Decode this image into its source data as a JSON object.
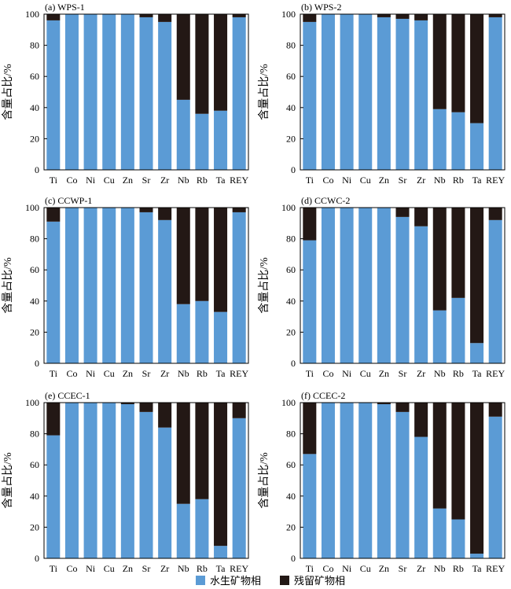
{
  "legend": [
    {
      "label": "水生矿物相",
      "color": "#5b9bd5"
    },
    {
      "label": "残留矿物相",
      "color": "#231815"
    }
  ],
  "chart_data": [
    {
      "type": "bar",
      "stacked": true,
      "title": "(a) WPS-1",
      "ylabel": "含量占比/%",
      "ylim": [
        0,
        100
      ],
      "yticks": [
        0,
        20,
        40,
        60,
        80,
        100
      ],
      "categories": [
        "Ti",
        "Co",
        "Ni",
        "Cu",
        "Zn",
        "Sr",
        "Zr",
        "Nb",
        "Rb",
        "Ta",
        "REY"
      ],
      "series": [
        {
          "name": "水生矿物相",
          "color": "#5b9bd5",
          "values": [
            96,
            100,
            100,
            100,
            100,
            98,
            95,
            45,
            36,
            38,
            98
          ]
        },
        {
          "name": "残留矿物相",
          "color": "#231815",
          "values": [
            4,
            0,
            0,
            0,
            0,
            2,
            5,
            55,
            64,
            62,
            2
          ]
        }
      ]
    },
    {
      "type": "bar",
      "stacked": true,
      "title": "(b) WPS-2",
      "ylabel": "含量占比/%",
      "ylim": [
        0,
        100
      ],
      "yticks": [
        0,
        20,
        40,
        60,
        80,
        100
      ],
      "categories": [
        "Ti",
        "Co",
        "Ni",
        "Cu",
        "Zn",
        "Sr",
        "Zr",
        "Nb",
        "Rb",
        "Ta",
        "REY"
      ],
      "series": [
        {
          "name": "水生矿物相",
          "color": "#5b9bd5",
          "values": [
            95,
            100,
            100,
            100,
            98,
            97,
            96,
            39,
            37,
            30,
            98
          ]
        },
        {
          "name": "残留矿物相",
          "color": "#231815",
          "values": [
            5,
            0,
            0,
            0,
            2,
            3,
            4,
            61,
            63,
            70,
            2
          ]
        }
      ]
    },
    {
      "type": "bar",
      "stacked": true,
      "title": "(c) CCWP-1",
      "ylabel": "含量占比/%",
      "ylim": [
        0,
        100
      ],
      "yticks": [
        0,
        20,
        40,
        60,
        80,
        100
      ],
      "categories": [
        "Ti",
        "Co",
        "Ni",
        "Cu",
        "Zn",
        "Sr",
        "Zr",
        "Nb",
        "Rb",
        "Ta",
        "REY"
      ],
      "series": [
        {
          "name": "水生矿物相",
          "color": "#5b9bd5",
          "values": [
            91,
            100,
            100,
            100,
            100,
            97,
            92,
            38,
            40,
            33,
            97
          ]
        },
        {
          "name": "残留矿物相",
          "color": "#231815",
          "values": [
            9,
            0,
            0,
            0,
            0,
            3,
            8,
            62,
            60,
            67,
            3
          ]
        }
      ]
    },
    {
      "type": "bar",
      "stacked": true,
      "title": "(d) CCWC-2",
      "ylabel": "含量占比/%",
      "ylim": [
        0,
        100
      ],
      "yticks": [
        0,
        20,
        40,
        60,
        80,
        100
      ],
      "categories": [
        "Ti",
        "Co",
        "Ni",
        "Cu",
        "Zn",
        "Sr",
        "Zr",
        "Nb",
        "Rb",
        "Ta",
        "REY"
      ],
      "series": [
        {
          "name": "水生矿物相",
          "color": "#5b9bd5",
          "values": [
            79,
            100,
            100,
            100,
            100,
            94,
            88,
            34,
            42,
            13,
            92
          ]
        },
        {
          "name": "残留矿物相",
          "color": "#231815",
          "values": [
            21,
            0,
            0,
            0,
            0,
            6,
            12,
            66,
            58,
            87,
            8
          ]
        }
      ]
    },
    {
      "type": "bar",
      "stacked": true,
      "title": "(e) CCEC-1",
      "ylabel": "含量占比/%",
      "ylim": [
        0,
        100
      ],
      "yticks": [
        0,
        20,
        40,
        60,
        80,
        100
      ],
      "categories": [
        "Ti",
        "Co",
        "Ni",
        "Cu",
        "Zn",
        "Sr",
        "Zr",
        "Nb",
        "Rb",
        "Ta",
        "REY"
      ],
      "series": [
        {
          "name": "水生矿物相",
          "color": "#5b9bd5",
          "values": [
            79,
            100,
            100,
            100,
            99,
            94,
            84,
            35,
            38,
            8,
            90
          ]
        },
        {
          "name": "残留矿物相",
          "color": "#231815",
          "values": [
            21,
            0,
            0,
            0,
            1,
            6,
            16,
            65,
            62,
            92,
            10
          ]
        }
      ]
    },
    {
      "type": "bar",
      "stacked": true,
      "title": "(f) CCEC-2",
      "ylabel": "含量占比/%",
      "ylim": [
        0,
        100
      ],
      "yticks": [
        0,
        20,
        40,
        60,
        80,
        100
      ],
      "categories": [
        "Ti",
        "Co",
        "Ni",
        "Cu",
        "Zn",
        "Sr",
        "Zr",
        "Nb",
        "Rb",
        "Ta",
        "REY"
      ],
      "series": [
        {
          "name": "水生矿物相",
          "color": "#5b9bd5",
          "values": [
            67,
            100,
            100,
            100,
            99,
            94,
            78,
            32,
            25,
            3,
            91
          ]
        },
        {
          "name": "残留矿物相",
          "color": "#231815",
          "values": [
            33,
            0,
            0,
            0,
            1,
            6,
            22,
            68,
            75,
            97,
            9
          ]
        }
      ]
    }
  ]
}
